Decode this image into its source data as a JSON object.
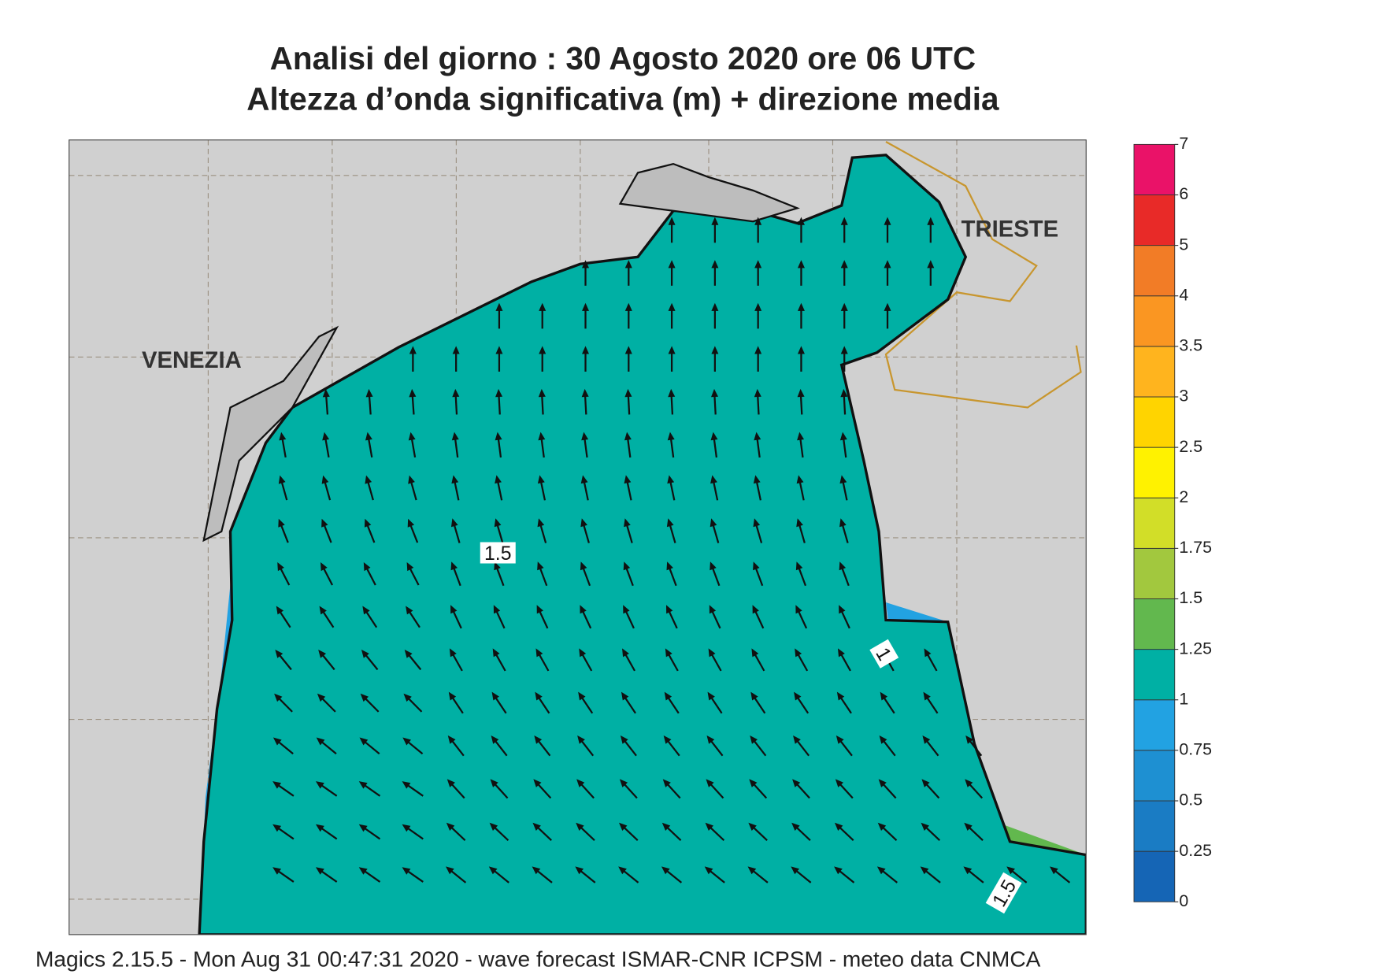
{
  "title": [
    "Analisi del giorno :  30   Agosto  2020   ore 06 UTC",
    "Altezza d’onda significativa (m) + direzione media"
  ],
  "map": {
    "cities": [
      "VENEZIA",
      "TRIESTE"
    ],
    "contour_labels": [
      "1.5",
      "1",
      "1.5"
    ]
  },
  "colorbar": {
    "levels": [
      0,
      0.25,
      0.5,
      0.75,
      1,
      1.25,
      1.5,
      1.75,
      2,
      2.5,
      3,
      3.5,
      4,
      5,
      6,
      7
    ],
    "colors": [
      "#1565b5",
      "#1a7cc4",
      "#1e90d2",
      "#22a2e2",
      "#00b0a4",
      "#62b84e",
      "#a2c83e",
      "#d2de28",
      "#fff200",
      "#ffd400",
      "#ffb41e",
      "#fa9622",
      "#f27c26",
      "#e82a28",
      "#ea1268"
    ]
  },
  "footer": "Magics 2.15.5 - Mon Aug 31 00:47:31 2020 - wave forecast  ISMAR-CNR  ICPSM - meteo data   CNMCA"
}
